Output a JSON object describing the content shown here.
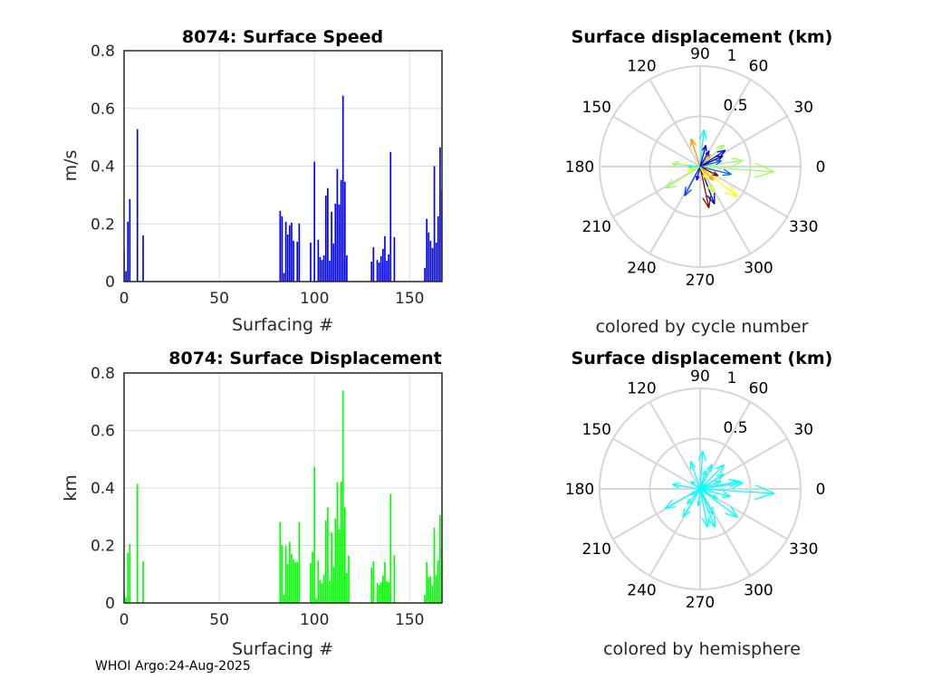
{
  "footer": "WHOI Argo:24-Aug-2025",
  "chart_data": [
    {
      "type": "bar",
      "title": "8074: Surface Speed",
      "xlabel": "Surfacing #",
      "ylabel": "m/s",
      "xlim": [
        0,
        167
      ],
      "ylim": [
        0,
        0.8
      ],
      "xticks": [
        "0",
        "50",
        "100",
        "150"
      ],
      "yticks": [
        "0",
        "0.2",
        "0.4",
        "0.6",
        "0.8"
      ],
      "grid": true,
      "color": "#0000ff",
      "x": [
        0,
        1,
        2,
        3,
        7,
        10,
        82,
        83,
        84,
        85,
        86,
        87,
        88,
        89,
        91,
        92,
        98,
        100,
        102,
        103,
        104,
        105,
        106,
        107,
        108,
        109,
        110,
        111,
        112,
        113,
        114,
        115,
        116,
        117,
        130,
        131,
        133,
        134,
        135,
        136,
        137,
        138,
        139,
        140,
        142,
        158,
        159,
        160,
        161,
        162,
        163,
        164,
        165,
        166,
        167
      ],
      "values": [
        0.105,
        0.036,
        0.207,
        0.286,
        0.528,
        0.16,
        0.245,
        0.226,
        0.03,
        0.207,
        0.163,
        0.195,
        0.204,
        0.141,
        0.138,
        0.201,
        0.135,
        0.415,
        0.145,
        0.085,
        0.075,
        0.091,
        0.298,
        0.324,
        0.072,
        0.242,
        0.132,
        0.27,
        0.39,
        0.267,
        0.352,
        0.644,
        0.346,
        0.091,
        0.069,
        0.119,
        0.075,
        0.066,
        0.088,
        0.113,
        0.157,
        0.072,
        0.094,
        0.449,
        0.154,
        0.047,
        0.217,
        0.17,
        0.141,
        0.116,
        0.4,
        0.135,
        0.226,
        0.465,
        0.317
      ]
    },
    {
      "type": "bar",
      "title": "8074: Surface Displacement",
      "xlabel": "Surfacing #",
      "ylabel": "km",
      "xlim": [
        0,
        167
      ],
      "ylim": [
        0,
        0.8
      ],
      "xticks": [
        "0",
        "50",
        "100",
        "150"
      ],
      "yticks": [
        "0",
        "0.2",
        "0.4",
        "0.6",
        "0.8"
      ],
      "grid": true,
      "color": "#00ff00",
      "x": [
        0,
        1,
        2,
        3,
        7,
        10,
        82,
        83,
        84,
        85,
        86,
        87,
        88,
        89,
        90,
        91,
        92,
        98,
        99,
        100,
        101,
        102,
        103,
        104,
        105,
        106,
        107,
        108,
        109,
        110,
        111,
        112,
        113,
        114,
        115,
        116,
        117,
        118,
        130,
        131,
        133,
        134,
        135,
        136,
        137,
        138,
        139,
        140,
        142,
        158,
        159,
        160,
        161,
        162,
        163,
        164,
        165,
        166,
        167
      ],
      "values": [
        0.047,
        0.019,
        0.174,
        0.205,
        0.414,
        0.145,
        0.281,
        0.202,
        0.028,
        0.199,
        0.136,
        0.212,
        0.171,
        0.152,
        0.142,
        0.142,
        0.281,
        0.139,
        0.177,
        0.474,
        0.016,
        0.148,
        0.079,
        0.069,
        0.098,
        0.287,
        0.332,
        0.076,
        0.246,
        0.126,
        0.294,
        0.42,
        0.256,
        0.423,
        0.739,
        0.332,
        0.104,
        0.164,
        0.123,
        0.145,
        0.069,
        0.063,
        0.073,
        0.095,
        0.142,
        0.076,
        0.073,
        0.379,
        0.167,
        0.028,
        0.142,
        0.092,
        0.092,
        0.06,
        0.262,
        0.098,
        0.148,
        0.306,
        0.189
      ]
    },
    {
      "type": "compass",
      "title": "Surface displacement (km)",
      "caption": "colored by cycle number",
      "rlim": [
        0,
        1
      ],
      "rticks": [
        "0.5",
        "1"
      ],
      "angle_ticks": [
        "0",
        "30",
        "60",
        "90",
        "120",
        "150",
        "180",
        "210",
        "240",
        "270",
        "300",
        "330"
      ],
      "vectors": [
        {
          "angle": 84,
          "length": 0.37,
          "color": "#00ffff"
        },
        {
          "angle": 108,
          "length": 0.29,
          "color": "#ff9900"
        },
        {
          "angle": 42,
          "length": 0.32,
          "color": "#99ff66"
        },
        {
          "angle": 33,
          "length": 0.3,
          "color": "#0000ff"
        },
        {
          "angle": 8,
          "length": 0.43,
          "color": "#99ff66"
        },
        {
          "angle": -4,
          "length": 0.74,
          "color": "#99ff66"
        },
        {
          "angle": -14,
          "length": 0.32,
          "color": "#0060ff"
        },
        {
          "angle": 174,
          "length": 0.28,
          "color": "#99ff66"
        },
        {
          "angle": 212,
          "length": 0.41,
          "color": "#99ff66"
        },
        {
          "angle": 242,
          "length": 0.33,
          "color": "#0040ff"
        },
        {
          "angle": 282,
          "length": 0.42,
          "color": "#8f0000"
        },
        {
          "angle": 291,
          "length": 0.4,
          "color": "#0000cc"
        },
        {
          "angle": 321,
          "length": 0.48,
          "color": "#ffff00"
        },
        {
          "angle": 333,
          "length": 0.2,
          "color": "#8f0000"
        },
        {
          "angle": 297,
          "length": 0.29,
          "color": "#ccff33"
        },
        {
          "angle": 200,
          "length": 0.13,
          "color": "#ffff00"
        },
        {
          "angle": 50,
          "length": 0.16,
          "color": "#ff9900"
        },
        {
          "angle": 180,
          "length": 0.12,
          "color": "#00ffff"
        },
        {
          "angle": 75,
          "length": 0.22,
          "color": "#0000ff"
        },
        {
          "angle": 314,
          "length": 0.19,
          "color": "#ff9900"
        },
        {
          "angle": 256,
          "length": 0.14,
          "color": "#0000ff"
        },
        {
          "angle": 295,
          "length": 0.13,
          "color": "#ffff00"
        },
        {
          "angle": 25,
          "length": 0.25,
          "color": "#0000aa"
        },
        {
          "angle": 15,
          "length": 0.22,
          "color": "#0060ff"
        },
        {
          "angle": 60,
          "length": 0.18,
          "color": "#0000ff"
        }
      ]
    },
    {
      "type": "compass",
      "title": "Surface displacement (km)",
      "caption": "colored by hemisphere",
      "rlim": [
        0,
        1
      ],
      "rticks": [
        "0.5",
        "1"
      ],
      "angle_ticks": [
        "0",
        "30",
        "60",
        "90",
        "120",
        "150",
        "180",
        "210",
        "240",
        "270",
        "300",
        "330"
      ],
      "vectors": [
        {
          "angle": 86,
          "length": 0.38,
          "color": "#00ffff"
        },
        {
          "angle": 109,
          "length": 0.29,
          "color": "#00ffff"
        },
        {
          "angle": 45,
          "length": 0.34,
          "color": "#00ffff"
        },
        {
          "angle": 8,
          "length": 0.43,
          "color": "#00ffff"
        },
        {
          "angle": -3.5,
          "length": 0.74,
          "color": "#00ffff"
        },
        {
          "angle": 171,
          "length": 0.28,
          "color": "#00ffff"
        },
        {
          "angle": 209,
          "length": 0.4,
          "color": "#00ffff"
        },
        {
          "angle": 239,
          "length": 0.33,
          "color": "#00ffff"
        },
        {
          "angle": 281,
          "length": 0.39,
          "color": "#00ffff"
        },
        {
          "angle": 291,
          "length": 0.41,
          "color": "#00ffff"
        },
        {
          "angle": 323,
          "length": 0.47,
          "color": "#00ffff"
        },
        {
          "angle": 346,
          "length": 0.31,
          "color": "#00ffff"
        },
        {
          "angle": 297,
          "length": 0.29,
          "color": "#00ffff"
        },
        {
          "angle": 73,
          "length": 0.19,
          "color": "#00ffff"
        },
        {
          "angle": 213,
          "length": 0.11,
          "color": "#00ffff"
        },
        {
          "angle": 32,
          "length": 0.28,
          "color": "#00ffff"
        },
        {
          "angle": 11,
          "length": 0.4,
          "color": "#00ffff"
        },
        {
          "angle": 264,
          "length": 0.17,
          "color": "#00ffff"
        },
        {
          "angle": 64,
          "length": 0.27,
          "color": "#00ffff"
        },
        {
          "angle": 230,
          "length": 0.2,
          "color": "#00ffff"
        },
        {
          "angle": 20,
          "length": 0.22,
          "color": "#00ffff"
        },
        {
          "angle": 140,
          "length": 0.12,
          "color": "#00ffff"
        },
        {
          "angle": 330,
          "length": 0.2,
          "color": "#00ffff"
        }
      ]
    }
  ]
}
